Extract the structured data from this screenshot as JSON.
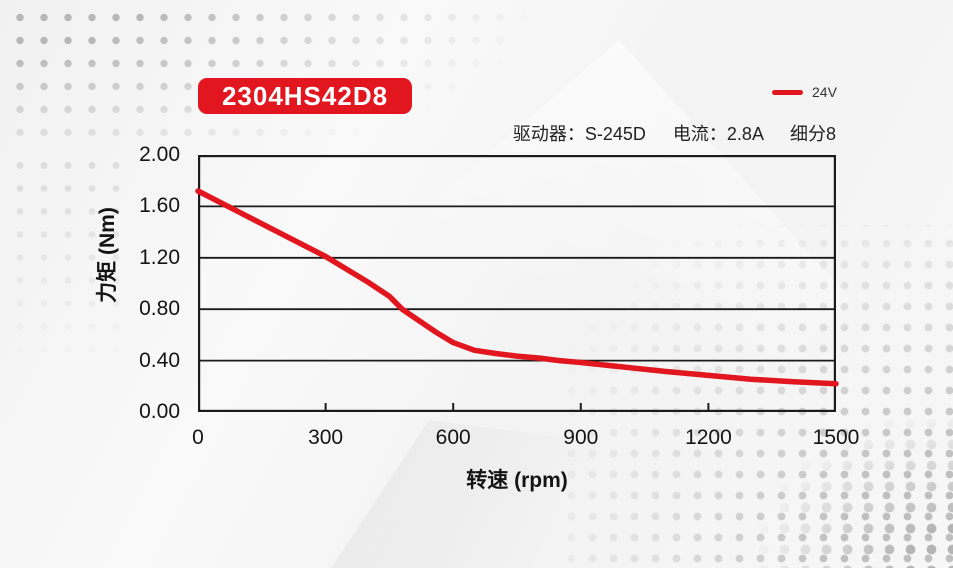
{
  "header": {
    "model": "2304HS42D8",
    "driver_info": [
      "驱动器：S-245D",
      "电流：2.8A",
      "细分8"
    ]
  },
  "colors": {
    "accent_red": "#e2161f",
    "axis": "#1b1b1b",
    "text": "#141414"
  },
  "chart_data": {
    "type": "line",
    "title": "",
    "xlabel": "转速 (rpm)",
    "ylabel": "力矩 (Nm)",
    "xlim": [
      0,
      1500
    ],
    "ylim": [
      0,
      2
    ],
    "xticks": [
      0,
      300,
      600,
      900,
      1200,
      1500
    ],
    "xtick_labels": [
      "0",
      "300",
      "600",
      "900",
      "1200",
      "1500"
    ],
    "yticks": [
      0,
      0.4,
      0.8,
      1.2,
      1.6,
      2
    ],
    "ytick_labels": [
      "0.00",
      "0.40",
      "0.80",
      "1.20",
      "1.60",
      "2.00"
    ],
    "grid": "horizontal",
    "legend_position": "top-right",
    "series": [
      {
        "name": "24V",
        "color": "#e2161f",
        "points": [
          [
            0,
            1.72
          ],
          [
            100,
            1.55
          ],
          [
            200,
            1.38
          ],
          [
            300,
            1.21
          ],
          [
            400,
            1.01
          ],
          [
            450,
            0.9
          ],
          [
            480,
            0.8
          ],
          [
            520,
            0.71
          ],
          [
            560,
            0.62
          ],
          [
            600,
            0.54
          ],
          [
            650,
            0.48
          ],
          [
            700,
            0.455
          ],
          [
            750,
            0.435
          ],
          [
            800,
            0.42
          ],
          [
            850,
            0.4
          ],
          [
            900,
            0.385
          ],
          [
            1000,
            0.35
          ],
          [
            1100,
            0.315
          ],
          [
            1200,
            0.285
          ],
          [
            1300,
            0.255
          ],
          [
            1400,
            0.235
          ],
          [
            1500,
            0.22
          ]
        ]
      }
    ]
  }
}
